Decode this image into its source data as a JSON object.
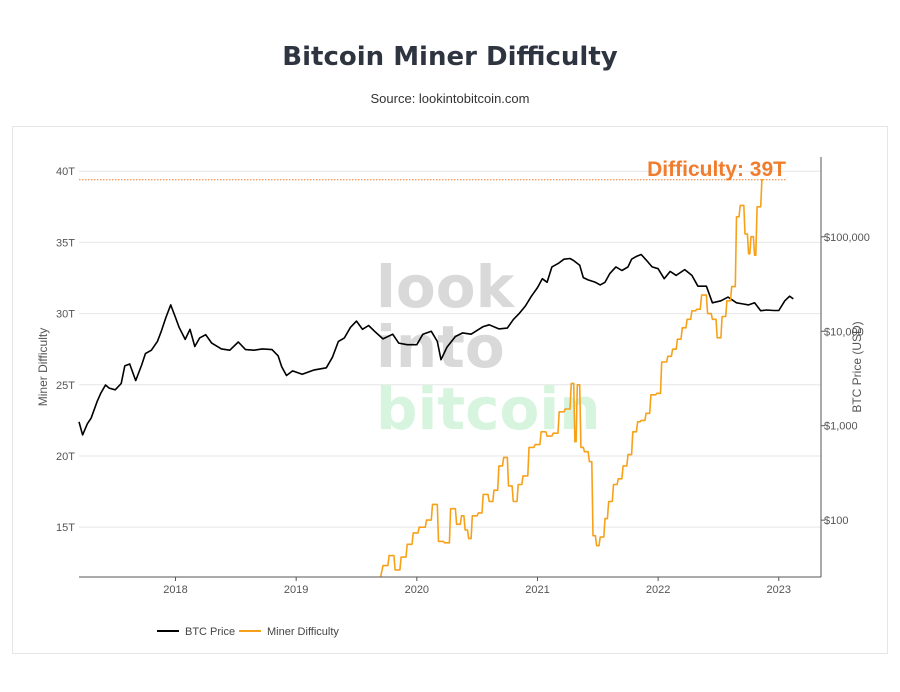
{
  "header": {
    "title": "Bitcoin Miner Difficulty",
    "subtitle": "Source: lookintobitcoin.com"
  },
  "watermark": {
    "line1": "look",
    "line2": "into",
    "line3": "bitcoin"
  },
  "colors": {
    "difficulty": "#f7a11a",
    "price": "#000000",
    "annotation": "#f07d2e",
    "grid": "#e6e6e6"
  },
  "chart_data": {
    "type": "line",
    "title": "Bitcoin Miner Difficulty",
    "subtitle": "Source: lookintobitcoin.com",
    "y_left": {
      "label": "Miner Difficulty",
      "ticks": [
        "15T",
        "20T",
        "25T",
        "30T",
        "35T",
        "40T"
      ],
      "range": [
        11.5,
        41
      ]
    },
    "y_right": {
      "label": "BTC Price (USD)",
      "scale": "log",
      "ticks": [
        "$100",
        "$1,000",
        "$10,000",
        "$100,000"
      ],
      "range": [
        25,
        700000
      ]
    },
    "x": {
      "ticks": [
        "2018",
        "2019",
        "2020",
        "2021",
        "2022",
        "2023"
      ],
      "range": [
        2017.2,
        2023.35
      ]
    },
    "annotation": {
      "text": "Difficulty: 39T",
      "value": 39.4
    },
    "grid": true,
    "legend": {
      "position": "bottom-left",
      "entries": [
        "BTC Price",
        "Miner Difficulty"
      ]
    },
    "series": [
      {
        "name": "BTC Price",
        "axis": "right",
        "points": [
          [
            2017.2,
            1100
          ],
          [
            2017.23,
            800
          ],
          [
            2017.27,
            1050
          ],
          [
            2017.3,
            1200
          ],
          [
            2017.35,
            1800
          ],
          [
            2017.38,
            2200
          ],
          [
            2017.42,
            2700
          ],
          [
            2017.45,
            2500
          ],
          [
            2017.5,
            2400
          ],
          [
            2017.55,
            2800
          ],
          [
            2017.58,
            4300
          ],
          [
            2017.62,
            4500
          ],
          [
            2017.67,
            3000
          ],
          [
            2017.72,
            4400
          ],
          [
            2017.75,
            5800
          ],
          [
            2017.8,
            6300
          ],
          [
            2017.85,
            7800
          ],
          [
            2017.88,
            9800
          ],
          [
            2017.92,
            14000
          ],
          [
            2017.96,
            19000
          ],
          [
            2018.0,
            14000
          ],
          [
            2018.03,
            11000
          ],
          [
            2018.08,
            8200
          ],
          [
            2018.12,
            10500
          ],
          [
            2018.16,
            6900
          ],
          [
            2018.2,
            8500
          ],
          [
            2018.25,
            9200
          ],
          [
            2018.3,
            7500
          ],
          [
            2018.38,
            6500
          ],
          [
            2018.45,
            6300
          ],
          [
            2018.52,
            7700
          ],
          [
            2018.58,
            6400
          ],
          [
            2018.65,
            6300
          ],
          [
            2018.72,
            6500
          ],
          [
            2018.8,
            6400
          ],
          [
            2018.85,
            5500
          ],
          [
            2018.88,
            4200
          ],
          [
            2018.92,
            3400
          ],
          [
            2018.97,
            3800
          ],
          [
            2019.05,
            3500
          ],
          [
            2019.15,
            3900
          ],
          [
            2019.25,
            4100
          ],
          [
            2019.3,
            5300
          ],
          [
            2019.35,
            7800
          ],
          [
            2019.4,
            8500
          ],
          [
            2019.45,
            11000
          ],
          [
            2019.5,
            12800
          ],
          [
            2019.55,
            10500
          ],
          [
            2019.6,
            11500
          ],
          [
            2019.65,
            10000
          ],
          [
            2019.72,
            8300
          ],
          [
            2019.8,
            9300
          ],
          [
            2019.85,
            7500
          ],
          [
            2019.92,
            7200
          ],
          [
            2020.0,
            7200
          ],
          [
            2020.05,
            9300
          ],
          [
            2020.12,
            10000
          ],
          [
            2020.17,
            7800
          ],
          [
            2020.2,
            5000
          ],
          [
            2020.25,
            6800
          ],
          [
            2020.32,
            8800
          ],
          [
            2020.38,
            9600
          ],
          [
            2020.45,
            9300
          ],
          [
            2020.55,
            11200
          ],
          [
            2020.6,
            11700
          ],
          [
            2020.68,
            10600
          ],
          [
            2020.75,
            10800
          ],
          [
            2020.8,
            13300
          ],
          [
            2020.85,
            15500
          ],
          [
            2020.9,
            18500
          ],
          [
            2020.95,
            23500
          ],
          [
            2021.0,
            29000
          ],
          [
            2021.04,
            36000
          ],
          [
            2021.08,
            33000
          ],
          [
            2021.12,
            48000
          ],
          [
            2021.17,
            52000
          ],
          [
            2021.22,
            58000
          ],
          [
            2021.27,
            59000
          ],
          [
            2021.3,
            56000
          ],
          [
            2021.35,
            50000
          ],
          [
            2021.38,
            37000
          ],
          [
            2021.42,
            35000
          ],
          [
            2021.48,
            33000
          ],
          [
            2021.52,
            31000
          ],
          [
            2021.56,
            33000
          ],
          [
            2021.6,
            41000
          ],
          [
            2021.65,
            48000
          ],
          [
            2021.7,
            44000
          ],
          [
            2021.75,
            48000
          ],
          [
            2021.78,
            58000
          ],
          [
            2021.82,
            62000
          ],
          [
            2021.86,
            65000
          ],
          [
            2021.9,
            57000
          ],
          [
            2021.95,
            48000
          ],
          [
            2022.0,
            46000
          ],
          [
            2022.05,
            36000
          ],
          [
            2022.1,
            43000
          ],
          [
            2022.15,
            39000
          ],
          [
            2022.22,
            45000
          ],
          [
            2022.28,
            39000
          ],
          [
            2022.33,
            30000
          ],
          [
            2022.4,
            30000
          ],
          [
            2022.45,
            20000
          ],
          [
            2022.52,
            21000
          ],
          [
            2022.58,
            23000
          ],
          [
            2022.65,
            20000
          ],
          [
            2022.7,
            19500
          ],
          [
            2022.75,
            19000
          ],
          [
            2022.8,
            20000
          ],
          [
            2022.85,
            16500
          ],
          [
            2022.9,
            16800
          ],
          [
            2022.96,
            16600
          ],
          [
            2023.0,
            16600
          ],
          [
            2023.05,
            21000
          ],
          [
            2023.09,
            23500
          ],
          [
            2023.12,
            22000
          ]
        ]
      },
      {
        "name": "Miner Difficulty",
        "axis": "left",
        "points": [
          [
            2019.7,
            11.5
          ],
          [
            2019.72,
            12.3
          ],
          [
            2019.76,
            12.3
          ],
          [
            2019.77,
            13.0
          ],
          [
            2019.81,
            13.0
          ],
          [
            2019.82,
            12.0
          ],
          [
            2019.86,
            12.0
          ],
          [
            2019.87,
            12.9
          ],
          [
            2019.91,
            12.9
          ],
          [
            2019.92,
            13.8
          ],
          [
            2019.96,
            13.8
          ],
          [
            2019.97,
            14.6
          ],
          [
            2020.01,
            14.6
          ],
          [
            2020.02,
            15.0
          ],
          [
            2020.07,
            15.0
          ],
          [
            2020.08,
            15.5
          ],
          [
            2020.12,
            15.5
          ],
          [
            2020.13,
            16.6
          ],
          [
            2020.17,
            16.6
          ],
          [
            2020.18,
            14.0
          ],
          [
            2020.22,
            14.0
          ],
          [
            2020.23,
            13.9
          ],
          [
            2020.27,
            13.9
          ],
          [
            2020.28,
            16.3
          ],
          [
            2020.32,
            16.3
          ],
          [
            2020.33,
            15.2
          ],
          [
            2020.36,
            15.2
          ],
          [
            2020.37,
            15.8
          ],
          [
            2020.39,
            15.8
          ],
          [
            2020.4,
            14.8
          ],
          [
            2020.42,
            14.8
          ],
          [
            2020.43,
            14.2
          ],
          [
            2020.45,
            14.2
          ],
          [
            2020.46,
            15.8
          ],
          [
            2020.5,
            15.8
          ],
          [
            2020.51,
            16.0
          ],
          [
            2020.54,
            16.0
          ],
          [
            2020.55,
            17.3
          ],
          [
            2020.59,
            17.3
          ],
          [
            2020.6,
            16.8
          ],
          [
            2020.63,
            16.8
          ],
          [
            2020.64,
            17.6
          ],
          [
            2020.67,
            17.6
          ],
          [
            2020.68,
            19.3
          ],
          [
            2020.71,
            19.3
          ],
          [
            2020.72,
            19.9
          ],
          [
            2020.75,
            19.9
          ],
          [
            2020.76,
            17.9
          ],
          [
            2020.79,
            17.9
          ],
          [
            2020.8,
            16.8
          ],
          [
            2020.83,
            16.8
          ],
          [
            2020.84,
            18.0
          ],
          [
            2020.87,
            18.0
          ],
          [
            2020.88,
            18.6
          ],
          [
            2020.92,
            18.6
          ],
          [
            2020.93,
            20.6
          ],
          [
            2020.97,
            20.6
          ],
          [
            2020.98,
            20.8
          ],
          [
            2021.02,
            20.8
          ],
          [
            2021.03,
            21.7
          ],
          [
            2021.07,
            21.7
          ],
          [
            2021.08,
            21.4
          ],
          [
            2021.12,
            21.4
          ],
          [
            2021.13,
            21.6
          ],
          [
            2021.17,
            21.6
          ],
          [
            2021.18,
            23.1
          ],
          [
            2021.22,
            23.1
          ],
          [
            2021.23,
            23.3
          ],
          [
            2021.27,
            23.3
          ],
          [
            2021.28,
            25.1
          ],
          [
            2021.3,
            25.1
          ],
          [
            2021.31,
            21.0
          ],
          [
            2021.32,
            21.0
          ],
          [
            2021.33,
            25.0
          ],
          [
            2021.35,
            25.0
          ],
          [
            2021.36,
            20.6
          ],
          [
            2021.38,
            20.6
          ],
          [
            2021.39,
            20.3
          ],
          [
            2021.42,
            20.3
          ],
          [
            2021.43,
            19.6
          ],
          [
            2021.45,
            19.6
          ],
          [
            2021.46,
            14.4
          ],
          [
            2021.48,
            14.4
          ],
          [
            2021.49,
            13.7
          ],
          [
            2021.51,
            13.7
          ],
          [
            2021.52,
            14.3
          ],
          [
            2021.55,
            14.3
          ],
          [
            2021.56,
            15.6
          ],
          [
            2021.58,
            15.6
          ],
          [
            2021.59,
            16.8
          ],
          [
            2021.62,
            16.8
          ],
          [
            2021.63,
            18.0
          ],
          [
            2021.66,
            18.0
          ],
          [
            2021.67,
            18.4
          ],
          [
            2021.7,
            18.4
          ],
          [
            2021.71,
            19.3
          ],
          [
            2021.74,
            19.3
          ],
          [
            2021.75,
            20.1
          ],
          [
            2021.78,
            20.1
          ],
          [
            2021.79,
            21.7
          ],
          [
            2021.82,
            21.7
          ],
          [
            2021.83,
            22.4
          ],
          [
            2021.85,
            22.4
          ],
          [
            2021.86,
            22.5
          ],
          [
            2021.89,
            22.5
          ],
          [
            2021.9,
            23.0
          ],
          [
            2021.93,
            23.0
          ],
          [
            2021.94,
            24.3
          ],
          [
            2021.98,
            24.3
          ],
          [
            2021.99,
            24.4
          ],
          [
            2022.02,
            24.4
          ],
          [
            2022.03,
            26.6
          ],
          [
            2022.07,
            26.6
          ],
          [
            2022.08,
            27.0
          ],
          [
            2022.11,
            27.0
          ],
          [
            2022.12,
            27.5
          ],
          [
            2022.15,
            27.5
          ],
          [
            2022.16,
            28.2
          ],
          [
            2022.19,
            28.2
          ],
          [
            2022.2,
            29.0
          ],
          [
            2022.23,
            29.0
          ],
          [
            2022.24,
            29.6
          ],
          [
            2022.27,
            29.6
          ],
          [
            2022.28,
            30.2
          ],
          [
            2022.31,
            30.2
          ],
          [
            2022.32,
            30.3
          ],
          [
            2022.35,
            30.3
          ],
          [
            2022.36,
            31.3
          ],
          [
            2022.4,
            31.3
          ],
          [
            2022.41,
            30.0
          ],
          [
            2022.44,
            30.0
          ],
          [
            2022.45,
            29.6
          ],
          [
            2022.48,
            29.6
          ],
          [
            2022.49,
            28.3
          ],
          [
            2022.52,
            28.3
          ],
          [
            2022.53,
            29.8
          ],
          [
            2022.56,
            29.8
          ],
          [
            2022.57,
            30.9
          ],
          [
            2022.6,
            30.9
          ],
          [
            2022.61,
            31.9
          ],
          [
            2022.64,
            31.9
          ],
          [
            2022.65,
            36.8
          ],
          [
            2022.67,
            36.8
          ],
          [
            2022.68,
            37.6
          ],
          [
            2022.71,
            37.6
          ],
          [
            2022.72,
            35.6
          ],
          [
            2022.74,
            35.6
          ],
          [
            2022.75,
            34.2
          ],
          [
            2022.76,
            34.2
          ],
          [
            2022.77,
            35.4
          ],
          [
            2022.79,
            35.4
          ],
          [
            2022.8,
            34.1
          ],
          [
            2022.81,
            34.1
          ],
          [
            2022.82,
            37.5
          ],
          [
            2022.85,
            37.5
          ],
          [
            2022.86,
            39.4
          ],
          [
            2022.87,
            39.4
          ]
        ]
      }
    ]
  }
}
